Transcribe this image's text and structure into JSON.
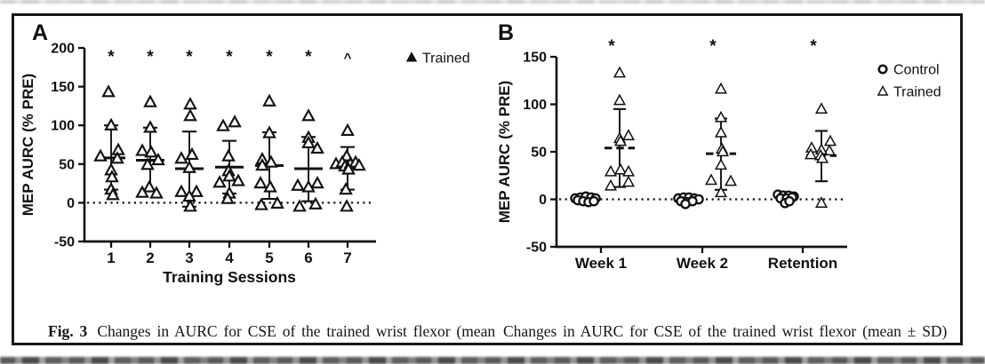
{
  "caption": {
    "fig_label": "Fig. 3",
    "left_text": "Changes in AURC for CSE of the trained wrist flexor (mean",
    "right_text": "Changes in AURC for CSE of the trained wrist flexor (mean ± SD)"
  },
  "chart_data": [
    {
      "type": "scatter",
      "panel": "A",
      "ylabel": "MEP AURC (% PRE)",
      "xlabel": "Training Sessions",
      "ylim": [
        -50,
        200
      ],
      "yticks": [
        200,
        150,
        100,
        50,
        0,
        -50
      ],
      "categories": [
        "1",
        "2",
        "3",
        "4",
        "5",
        "6",
        "7"
      ],
      "sig_markers": [
        "*",
        "*",
        "*",
        "*",
        "*",
        "*",
        "^"
      ],
      "zero_line": "dotted",
      "grid": "off",
      "legend_position": "right-top",
      "legend": [
        {
          "label": "Trained",
          "marker": "triangle-filled"
        }
      ],
      "series": [
        {
          "name": "Trained",
          "marker": "triangle",
          "offset": 0,
          "mean_style": "solid",
          "means": [
            58,
            55,
            44,
            46,
            48,
            44,
            46
          ],
          "sd_low": [
            17,
            15,
            -5,
            12,
            5,
            2,
            17
          ],
          "sd_high": [
            100,
            97,
            92,
            80,
            91,
            85,
            72
          ],
          "points": [
            [
              [
                -3,
                143
              ],
              [
                0,
                100
              ],
              [
                8,
                68
              ],
              [
                -12,
                60
              ],
              [
                7,
                57
              ],
              [
                0,
                42
              ],
              [
                1,
                33
              ],
              [
                0,
                17
              ],
              [
                2,
                10
              ]
            ],
            [
              [
                0,
                130
              ],
              [
                0,
                97
              ],
              [
                -9,
                67
              ],
              [
                1,
                65
              ],
              [
                9,
                55
              ],
              [
                -3,
                49
              ],
              [
                -1,
                20
              ],
              [
                -9,
                13
              ],
              [
                7,
                12
              ]
            ],
            [
              [
                1,
                127
              ],
              [
                1,
                112
              ],
              [
                3,
                62
              ],
              [
                -9,
                57
              ],
              [
                0,
                45
              ],
              [
                -9,
                14
              ],
              [
                8,
                14
              ],
              [
                0,
                8
              ],
              [
                1,
                -5
              ]
            ],
            [
              [
                6,
                104
              ],
              [
                -7,
                99
              ],
              [
                -1,
                60
              ],
              [
                -1,
                41
              ],
              [
                0,
                34
              ],
              [
                10,
                28
              ],
              [
                -11,
                26
              ],
              [
                0,
                12
              ],
              [
                -2,
                5
              ]
            ],
            [
              [
                0,
                131
              ],
              [
                0,
                90
              ],
              [
                -8,
                56
              ],
              [
                2,
                52
              ],
              [
                -8,
                48
              ],
              [
                -10,
                25
              ],
              [
                1,
                20
              ],
              [
                -9,
                -3
              ],
              [
                9,
                -1
              ]
            ],
            [
              [
                0,
                112
              ],
              [
                0,
                84
              ],
              [
                0,
                77
              ],
              [
                10,
                70
              ],
              [
                10,
                25
              ],
              [
                -12,
                22
              ],
              [
                0,
                20
              ],
              [
                -10,
                -5
              ],
              [
                8,
                -2
              ]
            ],
            [
              [
                0,
                93
              ],
              [
                -1,
                60
              ],
              [
                -13,
                50
              ],
              [
                -6,
                52
              ],
              [
                -3,
                47
              ],
              [
                3,
                50
              ],
              [
                9,
                52
              ],
              [
                13,
                48
              ],
              [
                1,
                43
              ],
              [
                -2,
                17
              ],
              [
                -1,
                -5
              ]
            ]
          ]
        }
      ]
    },
    {
      "type": "scatter",
      "panel": "B",
      "ylabel": "MEP AURC (% PRE)",
      "xlabel": "",
      "ylim": [
        -50,
        150
      ],
      "yticks": [
        150,
        100,
        50,
        0,
        -50
      ],
      "categories": [
        "Week 1",
        "Week 2",
        "Retention"
      ],
      "sig_markers": [
        "*",
        "*",
        "*"
      ],
      "zero_line": "dotted",
      "grid": "off",
      "legend_position": "right-top",
      "legend": [
        {
          "label": "Control",
          "marker": "circle"
        },
        {
          "label": "Trained",
          "marker": "triangle"
        }
      ],
      "series": [
        {
          "name": "Control",
          "marker": "circle",
          "offset": -16,
          "points": [
            [
              [
                -13,
                1
              ],
              [
                -7,
                2
              ],
              [
                -1,
                3
              ],
              [
                5,
                2
              ],
              [
                10,
                1
              ],
              [
                -10,
                -1
              ],
              [
                -4,
                -2
              ],
              [
                2,
                -3
              ],
              [
                8,
                -2
              ]
            ],
            [
              [
                -11,
                1
              ],
              [
                -5,
                2
              ],
              [
                1,
                2
              ],
              [
                7,
                1
              ],
              [
                12,
                0
              ],
              [
                -8,
                -2
              ],
              [
                -1,
                -3
              ],
              [
                5,
                -2
              ],
              [
                -3,
                -5
              ]
            ],
            [
              [
                -12,
                5
              ],
              [
                -6,
                4
              ],
              [
                0,
                4
              ],
              [
                6,
                3
              ],
              [
                -9,
                1
              ],
              [
                -2,
                1
              ],
              [
                4,
                2
              ],
              [
                -4,
                -4
              ],
              [
                1,
                -2
              ]
            ]
          ]
        },
        {
          "name": "Trained",
          "marker": "triangle",
          "offset": 21,
          "mean_style": "dashed",
          "means": [
            54,
            48,
            46
          ],
          "sd_low": [
            13,
            10,
            19
          ],
          "sd_high": [
            95,
            85,
            72
          ],
          "points": [
            [
              [
                0,
                133
              ],
              [
                0,
                104
              ],
              [
                10,
                67
              ],
              [
                0,
                64
              ],
              [
                1,
                61
              ],
              [
                -10,
                29
              ],
              [
                1,
                31
              ],
              [
                10,
                29
              ],
              [
                10,
                18
              ],
              [
                -10,
                14
              ]
            ],
            [
              [
                0,
                116
              ],
              [
                0,
                86
              ],
              [
                0,
                70
              ],
              [
                1,
                53
              ],
              [
                2,
                50
              ],
              [
                0,
                36
              ],
              [
                -11,
                20
              ],
              [
                11,
                19
              ],
              [
                0,
                7
              ]
            ],
            [
              [
                0,
                95
              ],
              [
                10,
                61
              ],
              [
                -11,
                54
              ],
              [
                9,
                51
              ],
              [
                0,
                52
              ],
              [
                -12,
                47
              ],
              [
                -1,
                46
              ],
              [
                1,
                43
              ],
              [
                0,
                -4
              ]
            ]
          ]
        }
      ]
    }
  ]
}
